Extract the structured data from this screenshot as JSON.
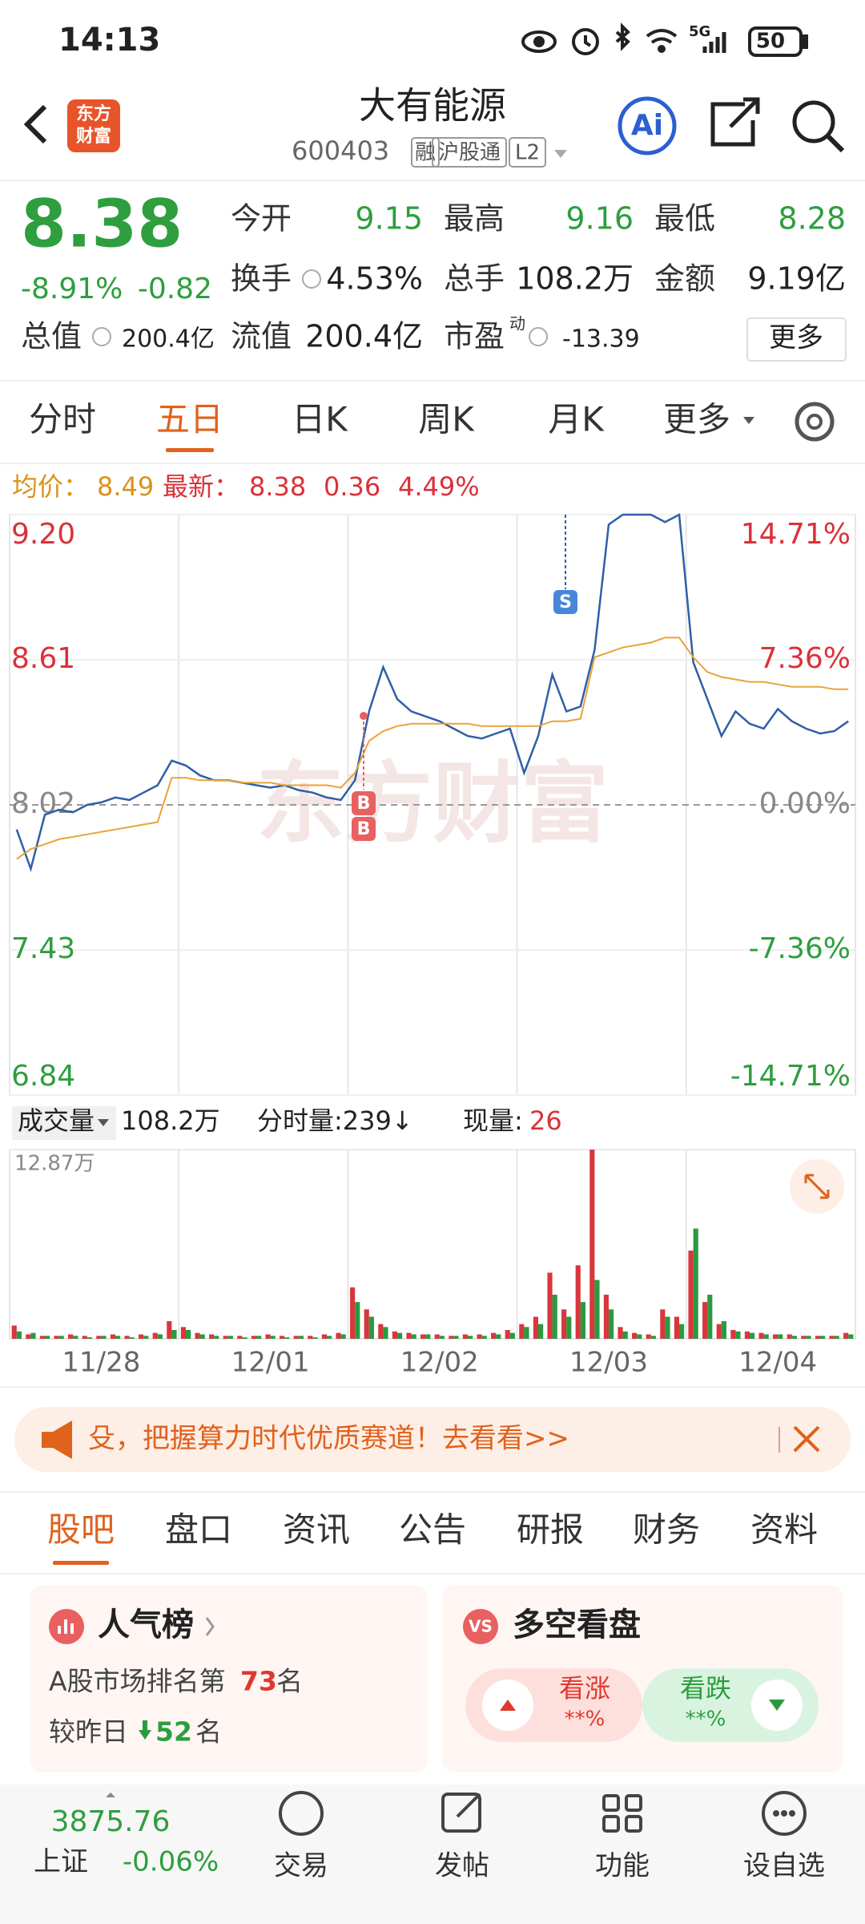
{
  "status": {
    "time": "14:13",
    "network": "5G",
    "battery": "50"
  },
  "header": {
    "logo": [
      "东方",
      "财富"
    ],
    "title": "大有能源",
    "code": "600403",
    "tags": [
      "融",
      "沪股通",
      "L2"
    ],
    "ai": "Ai"
  },
  "quote": {
    "price": "8.38",
    "change_pct": "-8.91%",
    "change": "-0.82",
    "fields": [
      [
        "今开",
        "9.15"
      ],
      [
        "最高",
        "9.16"
      ],
      [
        "最低",
        "8.28"
      ],
      [
        "换手",
        "4.53%"
      ],
      [
        "总手",
        "108.2万"
      ],
      [
        "金额",
        "9.19亿"
      ],
      [
        "总值",
        "200.4亿"
      ],
      [
        "流值",
        "200.4亿"
      ],
      [
        "市盈",
        "-13.39"
      ]
    ],
    "pe_note": "动",
    "more": "更多"
  },
  "tabs": {
    "items": [
      "分时",
      "五日",
      "日K",
      "周K",
      "月K",
      "更多"
    ],
    "active": 1
  },
  "info": {
    "avg_label": "均价：",
    "avg": "8.49",
    "latest_label": "最新：",
    "latest": "8.38",
    "change": "0.36",
    "change_pct": "4.49%"
  },
  "watermark": "东方财富",
  "chart_data": [
    {
      "type": "line",
      "categories": [
        null,
        null,
        null,
        null,
        null,
        null,
        "11/28",
        null,
        null,
        null,
        null,
        null,
        null,
        null,
        null,
        null,
        null,
        null,
        "12/01",
        null,
        null,
        null,
        null,
        null,
        null,
        null,
        null,
        null,
        null,
        null,
        "12/02",
        null,
        null,
        null,
        null,
        null,
        null,
        null,
        null,
        null,
        null,
        null,
        "12/03",
        null,
        null,
        null,
        null,
        null,
        null,
        null,
        null,
        null,
        null,
        null,
        "12/04",
        null,
        null,
        null,
        null,
        null
      ],
      "series": [
        {
          "color": "#2f5fa8",
          "values": [
            7.92,
            7.76,
            7.98,
            8.0,
            7.99,
            8.02,
            8.03,
            8.05,
            8.04,
            8.07,
            8.1,
            8.2,
            8.18,
            8.14,
            8.12,
            8.12,
            8.11,
            8.1,
            8.09,
            8.1,
            8.08,
            8.07,
            8.05,
            8.04,
            8.12,
            8.4,
            8.58,
            8.45,
            8.4,
            8.38,
            8.36,
            8.33,
            8.3,
            8.29,
            8.31,
            8.33,
            8.15,
            8.3,
            8.55,
            8.4,
            8.42,
            8.65,
            9.16,
            9.2,
            9.2,
            9.2,
            9.17,
            9.2,
            8.6,
            8.45,
            8.3,
            8.4,
            8.35,
            8.33,
            8.41,
            8.36,
            8.33,
            8.31,
            8.32,
            8.36
          ]
        },
        {
          "color": "#e8a33a",
          "values": [
            7.8,
            7.84,
            7.86,
            7.88,
            7.89,
            7.9,
            7.91,
            7.92,
            7.93,
            7.94,
            7.95,
            8.13,
            8.13,
            8.12,
            8.12,
            8.12,
            8.11,
            8.11,
            8.11,
            8.1,
            8.1,
            8.1,
            8.1,
            8.09,
            8.15,
            8.28,
            8.32,
            8.34,
            8.35,
            8.35,
            8.35,
            8.35,
            8.35,
            8.34,
            8.34,
            8.34,
            8.34,
            8.34,
            8.36,
            8.36,
            8.37,
            8.62,
            8.64,
            8.66,
            8.67,
            8.68,
            8.7,
            8.7,
            8.62,
            8.56,
            8.54,
            8.53,
            8.52,
            8.52,
            8.51,
            8.5,
            8.5,
            8.5,
            8.49,
            8.49
          ]
        }
      ],
      "ylim": [
        6.84,
        9.2
      ],
      "yticks": [
        {
          "value": 9.2,
          "label": "9.20"
        },
        8.61,
        8.02,
        7.43,
        6.84
      ],
      "y2lim": [
        -14.71,
        14.71
      ],
      "y2ticks": [
        {
          "value": 14.71,
          "label": "14.71%"
        },
        {
          "value": 7.36,
          "label": "7.36%"
        },
        {
          "value": 0,
          "label": "0.00%"
        },
        {
          "value": -7.36,
          "label": "-7.36%"
        },
        {
          "value": -14.71,
          "label": "-14.71%"
        }
      ],
      "annotations": [
        "S",
        "B",
        "B"
      ]
    },
    {
      "type": "bar",
      "series": [
        {
          "color": "#d9363e",
          "values": [
            9000,
            3000,
            2000,
            2000,
            3000,
            2000,
            2000,
            3000,
            2000,
            3000,
            4000,
            12000,
            8000,
            4000,
            3000,
            2000,
            2000,
            2000,
            3000,
            2000,
            2000,
            2000,
            3000,
            4000,
            35000,
            20000,
            10000,
            5000,
            4000,
            3000,
            3000,
            2000,
            3000,
            3000,
            4000,
            6000,
            10000,
            15000,
            45000,
            20000,
            50000,
            128700,
            30000,
            8000,
            4000,
            3000,
            20000,
            15000,
            60000,
            25000,
            10000,
            6000,
            5000,
            4000,
            3000,
            3000,
            2000,
            2000,
            2000,
            4000
          ]
        },
        {
          "color": "#2a9a40",
          "values": [
            5000,
            4000,
            2000,
            2000,
            2000,
            1000,
            2000,
            2000,
            1000,
            2000,
            3000,
            6000,
            6000,
            3000,
            2000,
            2000,
            1000,
            2000,
            2000,
            1000,
            2000,
            1000,
            2000,
            3000,
            25000,
            15000,
            8000,
            4000,
            3000,
            3000,
            2000,
            2000,
            2000,
            2000,
            3000,
            4000,
            8000,
            10000,
            30000,
            15000,
            25000,
            40000,
            20000,
            5000,
            3000,
            2000,
            15000,
            10000,
            75000,
            30000,
            12000,
            5000,
            4000,
            3000,
            3000,
            2000,
            2000,
            2000,
            2000,
            3000
          ]
        }
      ],
      "ylim": [
        0,
        128700
      ],
      "yticks": [
        {
          "value": 128700,
          "label": "12.87万"
        }
      ]
    }
  ],
  "volume_info": {
    "label": "成交量",
    "total": "108.2万",
    "tick_label": "分时量:239↓",
    "now_label": "现量:",
    "now": "26"
  },
  "banner": {
    "text": "殳，把握算力时代优质赛道！去看看>>"
  },
  "feed_tabs": {
    "items": [
      "股吧",
      "盘口",
      "资讯",
      "公告",
      "研报",
      "财务",
      "资料"
    ],
    "active": 0
  },
  "cards": {
    "popularity": {
      "title": "人气榜",
      "rank_prefix": "A股市场排名第",
      "rank": "73",
      "rank_suffix": "名",
      "change_prefix": "较昨日",
      "change": "52",
      "change_suffix": "名"
    },
    "sentiment": {
      "badge": "VS",
      "title": "多空看盘",
      "up": "看涨",
      "up_pct": "**%",
      "down": "看跌",
      "down_pct": "**%"
    }
  },
  "nav": {
    "index_value": "3875.76",
    "index_name": "上证",
    "index_change": "-0.06%",
    "items": [
      "交易",
      "发帖",
      "功能",
      "设自选"
    ]
  }
}
